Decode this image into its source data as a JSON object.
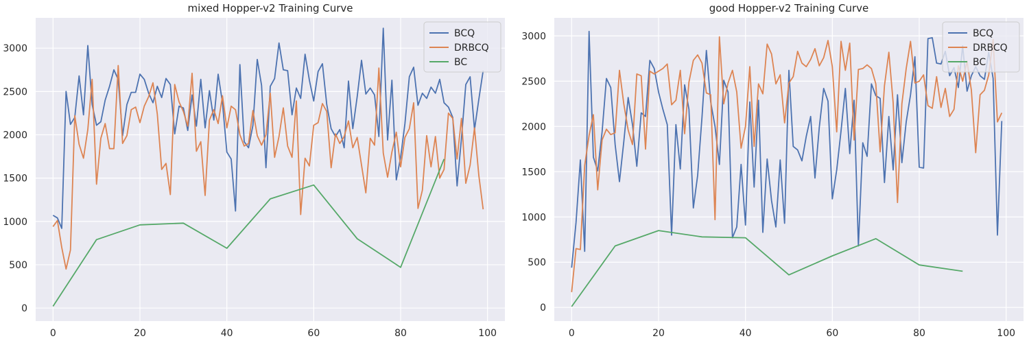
{
  "chart_data": [
    {
      "type": "line",
      "title": "mixed Hopper-v2 Training Curve",
      "xlabel": "",
      "ylabel": "",
      "xlim": [
        -4,
        104
      ],
      "ylim": [
        -150,
        3350
      ],
      "xticks": [
        0,
        20,
        40,
        60,
        80,
        100
      ],
      "yticks": [
        0,
        500,
        1000,
        1500,
        2000,
        2500,
        3000
      ],
      "grid": true,
      "legend": "top-right",
      "series": [
        {
          "name": "BCQ",
          "color": "#4c72b0",
          "x": [
            0,
            1,
            2,
            3,
            4,
            5,
            6,
            7,
            8,
            9,
            10,
            11,
            12,
            13,
            14,
            15,
            16,
            17,
            18,
            19,
            20,
            21,
            22,
            23,
            24,
            25,
            26,
            27,
            28,
            29,
            30,
            31,
            32,
            33,
            34,
            35,
            36,
            37,
            38,
            39,
            40,
            41,
            42,
            43,
            44,
            45,
            46,
            47,
            48,
            49,
            50,
            51,
            52,
            53,
            54,
            55,
            56,
            57,
            58,
            59,
            60,
            61,
            62,
            63,
            64,
            65,
            66,
            67,
            68,
            69,
            70,
            71,
            72,
            73,
            74,
            75,
            76,
            77,
            78,
            79,
            80,
            81,
            82,
            83,
            84,
            85,
            86,
            87,
            88,
            89,
            90,
            91,
            92,
            93,
            94,
            95,
            96,
            97,
            98,
            99
          ],
          "y": [
            1070,
            1040,
            920,
            2500,
            2120,
            2200,
            2680,
            2230,
            3030,
            2350,
            2110,
            2150,
            2400,
            2560,
            2750,
            2640,
            1990,
            2350,
            2490,
            2490,
            2700,
            2640,
            2480,
            2370,
            2560,
            2430,
            2650,
            2580,
            2010,
            2330,
            2310,
            2050,
            2460,
            2100,
            2640,
            2080,
            2510,
            2170,
            2700,
            2370,
            1800,
            1720,
            1120,
            2810,
            1920,
            1850,
            2110,
            2870,
            2570,
            1620,
            2560,
            2650,
            3060,
            2750,
            2740,
            2230,
            2540,
            2420,
            2930,
            2630,
            2390,
            2730,
            2820,
            2350,
            2070,
            1980,
            2060,
            1850,
            2620,
            2070,
            2440,
            2860,
            2470,
            2540,
            2460,
            1980,
            3230,
            1940,
            2630,
            1480,
            1740,
            2130,
            2670,
            2780,
            2340,
            2480,
            2420,
            2550,
            2480,
            2640,
            2370,
            2320,
            2200,
            1410,
            1960,
            2580,
            2670,
            2060,
            2410,
            2740
          ]
        },
        {
          "name": "DRBCQ",
          "color": "#dd8452",
          "x": [
            0,
            1,
            2,
            3,
            4,
            5,
            6,
            7,
            8,
            9,
            10,
            11,
            12,
            13,
            14,
            15,
            16,
            17,
            18,
            19,
            20,
            21,
            22,
            23,
            24,
            25,
            26,
            27,
            28,
            29,
            30,
            31,
            32,
            33,
            34,
            35,
            36,
            37,
            38,
            39,
            40,
            41,
            42,
            43,
            44,
            45,
            46,
            47,
            48,
            49,
            50,
            51,
            52,
            53,
            54,
            55,
            56,
            57,
            58,
            59,
            60,
            61,
            62,
            63,
            64,
            65,
            66,
            67,
            68,
            69,
            70,
            71,
            72,
            73,
            74,
            75,
            76,
            77,
            78,
            79,
            80,
            81,
            82,
            83,
            84,
            85,
            86,
            87,
            88,
            89,
            90,
            91,
            92,
            93,
            94,
            95,
            96,
            97,
            98,
            99
          ],
          "y": [
            940,
            1010,
            700,
            450,
            670,
            2220,
            1890,
            1730,
            2060,
            2640,
            1430,
            1960,
            2130,
            1840,
            1840,
            2800,
            1900,
            1990,
            2290,
            2320,
            2140,
            2330,
            2440,
            2600,
            2240,
            1600,
            1670,
            1310,
            2580,
            2380,
            2270,
            2100,
            2710,
            1810,
            1920,
            1300,
            2170,
            2290,
            2130,
            2450,
            2080,
            2330,
            2290,
            2000,
            1870,
            1900,
            2280,
            1990,
            1880,
            2000,
            2480,
            1740,
            1980,
            2310,
            1870,
            1740,
            2390,
            1080,
            1730,
            1640,
            2110,
            2140,
            2360,
            2270,
            1620,
            2010,
            1900,
            1980,
            2160,
            1850,
            1970,
            1650,
            1330,
            1960,
            1880,
            2770,
            1790,
            1510,
            1800,
            2030,
            1630,
            1970,
            2070,
            2370,
            1150,
            1360,
            1990,
            1630,
            1980,
            1500,
            1600,
            2250,
            2190,
            1720,
            2190,
            1440,
            1650,
            2080,
            1530,
            1140
          ]
        },
        {
          "name": "BC",
          "color": "#55a868",
          "x": [
            0,
            10,
            20,
            30,
            40,
            50,
            60,
            70,
            80,
            90
          ],
          "y": [
            20,
            790,
            960,
            980,
            690,
            1260,
            1420,
            800,
            470,
            1720
          ]
        }
      ]
    },
    {
      "type": "line",
      "title": "good Hopper-v2 Training Curve",
      "xlabel": "",
      "ylabel": "",
      "xlim": [
        -4,
        104
      ],
      "ylim": [
        -150,
        3200
      ],
      "xticks": [
        0,
        20,
        40,
        60,
        80,
        100
      ],
      "yticks": [
        0,
        500,
        1000,
        1500,
        2000,
        2500,
        3000
      ],
      "grid": true,
      "legend": "top-right",
      "series": [
        {
          "name": "BCQ",
          "color": "#4c72b0",
          "x": [
            0,
            1,
            2,
            3,
            4,
            5,
            6,
            7,
            8,
            9,
            10,
            11,
            12,
            13,
            14,
            15,
            16,
            17,
            18,
            19,
            20,
            21,
            22,
            23,
            24,
            25,
            26,
            27,
            28,
            29,
            30,
            31,
            32,
            33,
            34,
            35,
            36,
            37,
            38,
            39,
            40,
            41,
            42,
            43,
            44,
            45,
            46,
            47,
            48,
            49,
            50,
            51,
            52,
            53,
            54,
            55,
            56,
            57,
            58,
            59,
            60,
            61,
            62,
            63,
            64,
            65,
            66,
            67,
            68,
            69,
            70,
            71,
            72,
            73,
            74,
            75,
            76,
            77,
            78,
            79,
            80,
            81,
            82,
            83,
            84,
            85,
            86,
            87,
            88,
            89,
            90,
            91,
            92,
            93,
            94,
            95,
            96,
            97,
            98,
            99
          ],
          "y": [
            440,
            940,
            1630,
            620,
            3050,
            1660,
            1510,
            1940,
            2530,
            2430,
            1800,
            1390,
            1830,
            2320,
            2020,
            1560,
            2150,
            2110,
            2730,
            2640,
            2380,
            2190,
            2020,
            800,
            2020,
            1530,
            2460,
            2190,
            1100,
            1460,
            2100,
            2840,
            2270,
            2000,
            1580,
            2510,
            2380,
            770,
            890,
            1580,
            910,
            2270,
            1330,
            2290,
            830,
            1640,
            1180,
            890,
            1630,
            930,
            2620,
            1780,
            1740,
            1620,
            1890,
            2110,
            1430,
            1990,
            2420,
            2280,
            1200,
            1520,
            1950,
            2420,
            1700,
            2290,
            680,
            1820,
            1670,
            2470,
            2340,
            2310,
            1380,
            2110,
            1520,
            2350,
            1600,
            2050,
            2350,
            2770,
            1550,
            1540,
            2970,
            2980,
            2700,
            2690,
            2830,
            2560,
            2650,
            2430,
            2890,
            2390,
            2560,
            2660,
            2560,
            2520,
            2820,
            2530,
            800,
            2060
          ]
        },
        {
          "name": "DRBCQ",
          "color": "#dd8452",
          "x": [
            0,
            1,
            2,
            3,
            4,
            5,
            6,
            7,
            8,
            9,
            10,
            11,
            12,
            13,
            14,
            15,
            16,
            17,
            18,
            19,
            20,
            21,
            22,
            23,
            24,
            25,
            26,
            27,
            28,
            29,
            30,
            31,
            32,
            33,
            34,
            35,
            36,
            37,
            38,
            39,
            40,
            41,
            42,
            43,
            44,
            45,
            46,
            47,
            48,
            49,
            50,
            51,
            52,
            53,
            54,
            55,
            56,
            57,
            58,
            59,
            60,
            61,
            62,
            63,
            64,
            65,
            66,
            67,
            68,
            69,
            70,
            71,
            72,
            73,
            74,
            75,
            76,
            77,
            78,
            79,
            80,
            81,
            82,
            83,
            84,
            85,
            86,
            87,
            88,
            89,
            90,
            91,
            92,
            93,
            94,
            95,
            96,
            97,
            98,
            99
          ],
          "y": [
            170,
            650,
            640,
            1570,
            1900,
            2130,
            1300,
            1850,
            1970,
            1910,
            1930,
            2620,
            2250,
            1960,
            1800,
            2580,
            2560,
            1750,
            2610,
            2580,
            2610,
            2640,
            2690,
            2240,
            2290,
            2620,
            1920,
            2490,
            2730,
            2790,
            2700,
            2370,
            2350,
            970,
            2990,
            2250,
            2480,
            2620,
            2380,
            1760,
            2000,
            2660,
            1780,
            2470,
            2360,
            2910,
            2800,
            2470,
            2570,
            2040,
            2480,
            2550,
            2830,
            2700,
            2660,
            2740,
            2860,
            2670,
            2760,
            2950,
            2660,
            1940,
            2940,
            2620,
            2920,
            1850,
            2630,
            2640,
            2680,
            2640,
            2470,
            1720,
            2450,
            2820,
            2260,
            1160,
            2250,
            2640,
            2940,
            2480,
            2500,
            2570,
            2230,
            2200,
            2550,
            2210,
            2420,
            2110,
            2190,
            2670,
            2500,
            2720,
            2400,
            1710,
            2350,
            2400,
            2570,
            2960,
            2050,
            2150
          ]
        },
        {
          "name": "BC",
          "color": "#55a868",
          "x": [
            0,
            10,
            20,
            30,
            40,
            50,
            60,
            70,
            80,
            90
          ],
          "y": [
            10,
            680,
            850,
            780,
            770,
            360,
            570,
            760,
            470,
            400
          ]
        }
      ]
    }
  ]
}
